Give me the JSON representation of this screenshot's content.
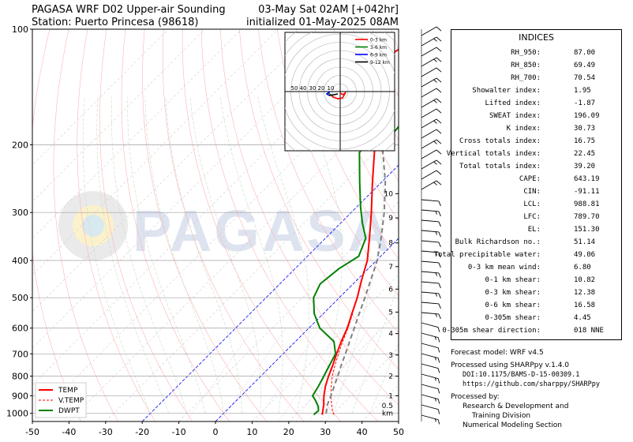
{
  "header": {
    "title_line1": "PAGASA WRF D02 Upper-air Sounding",
    "title_line2": "Station: Puerto Princesa (98618)",
    "valid_line1": "03-May Sat 02AM [+042hr]",
    "valid_line2": "initialized 01-May-2025 08AM"
  },
  "watermark": "PAGASA",
  "chart_data": {
    "type": "line",
    "subtype": "skew-T log-P diagram",
    "x_range": [
      -50,
      50
    ],
    "x_ticks": [
      -50,
      -40,
      -30,
      -20,
      -10,
      0,
      10,
      20,
      30,
      40,
      50
    ],
    "y_scale": "log",
    "y_range": [
      1050,
      100
    ],
    "y_ticks": [
      100,
      200,
      300,
      400,
      500,
      600,
      700,
      800,
      900,
      1000
    ],
    "km_ticks": [
      {
        "label": "1",
        "p": 900
      },
      {
        "label": "2",
        "p": 800
      },
      {
        "label": "3",
        "p": 705
      },
      {
        "label": "4",
        "p": 620
      },
      {
        "label": "5",
        "p": 545
      },
      {
        "label": "6",
        "p": 475
      },
      {
        "label": "7",
        "p": 415
      },
      {
        "label": "8",
        "p": 360
      },
      {
        "label": "9",
        "p": 310
      },
      {
        "label": "10",
        "p": 268
      }
    ],
    "km_extra": [
      {
        "label": "0.5",
        "p": 955
      },
      {
        "label": "km",
        "p": 1000
      }
    ],
    "legend_position": "bottom-left",
    "series": [
      {
        "name": "TEMP",
        "color": "#ff0000",
        "style": "solid",
        "points": [
          [
            1008,
            27.2
          ],
          [
            1000,
            27
          ],
          [
            975,
            26
          ],
          [
            950,
            25
          ],
          [
            925,
            23.8
          ],
          [
            900,
            22.6
          ],
          [
            850,
            20.4
          ],
          [
            800,
            18.5
          ],
          [
            750,
            16.7
          ],
          [
            700,
            14.6
          ],
          [
            650,
            12.5
          ],
          [
            600,
            10.5
          ],
          [
            550,
            7.8
          ],
          [
            500,
            4.9
          ],
          [
            450,
            1.3
          ],
          [
            400,
            -2.5
          ],
          [
            350,
            -8
          ],
          [
            300,
            -14.5
          ],
          [
            250,
            -22.5
          ],
          [
            200,
            -32
          ],
          [
            150,
            -45
          ],
          [
            125,
            -52
          ],
          [
            115,
            -52
          ],
          [
            100,
            -49
          ]
        ]
      },
      {
        "name": "V.TEMP",
        "color": "#ff0000",
        "style": "dashed",
        "points": [
          [
            1008,
            30.5
          ],
          [
            1000,
            30
          ],
          [
            975,
            28.5
          ],
          [
            950,
            27.2
          ],
          [
            925,
            25.8
          ],
          [
            900,
            24.5
          ],
          [
            850,
            22
          ],
          [
            800,
            19.5
          ],
          [
            750,
            17.3
          ],
          [
            700,
            15.1
          ],
          [
            650,
            12.9
          ],
          [
            600,
            10.7
          ],
          [
            550,
            8
          ]
        ]
      },
      {
        "name": "DWPT",
        "color": "#008000",
        "style": "solid",
        "points": [
          [
            1008,
            25
          ],
          [
            1000,
            25
          ],
          [
            985,
            25.2
          ],
          [
            960,
            24
          ],
          [
            925,
            21.5
          ],
          [
            900,
            19.5
          ],
          [
            850,
            18.5
          ],
          [
            800,
            17.2
          ],
          [
            750,
            15.8
          ],
          [
            700,
            14.3
          ],
          [
            650,
            10.5
          ],
          [
            600,
            3
          ],
          [
            550,
            -2.5
          ],
          [
            500,
            -7
          ],
          [
            460,
            -9
          ],
          [
            420,
            -8
          ],
          [
            390,
            -6
          ],
          [
            350,
            -9
          ],
          [
            320,
            -14
          ],
          [
            290,
            -19
          ],
          [
            250,
            -26
          ],
          [
            210,
            -34
          ],
          [
            200,
            -35
          ],
          [
            190,
            -30
          ],
          [
            170,
            -31
          ],
          [
            150,
            -36
          ],
          [
            130,
            -41
          ],
          [
            115,
            -41
          ],
          [
            100,
            -38
          ]
        ]
      },
      {
        "name": "parcel",
        "color": "#808080",
        "style": "dashed",
        "points": [
          [
            1000,
            28
          ],
          [
            950,
            26
          ],
          [
            900,
            24.5
          ],
          [
            850,
            22.8
          ],
          [
            800,
            21
          ],
          [
            750,
            19
          ],
          [
            700,
            17
          ],
          [
            650,
            14.8
          ],
          [
            600,
            12.4
          ],
          [
            550,
            9.8
          ],
          [
            500,
            7
          ],
          [
            450,
            3.8
          ],
          [
            400,
            0.2
          ],
          [
            350,
            -4.8
          ],
          [
            300,
            -11
          ],
          [
            250,
            -19
          ],
          [
            200,
            -30
          ],
          [
            150,
            -45
          ],
          [
            130,
            -55
          ],
          [
            120,
            -60
          ]
        ]
      }
    ]
  },
  "hodograph": {
    "rings": [
      "10",
      "20",
      "30",
      "40",
      "50"
    ],
    "legend": [
      {
        "label": "0-3 km",
        "color": "#ff0000"
      },
      {
        "label": "3-6 km",
        "color": "#008000"
      },
      {
        "label": "6-9 km",
        "color": "#0000ff"
      },
      {
        "label": "9-12 km",
        "color": "#000000"
      }
    ]
  },
  "indices": {
    "title": "INDICES",
    "rows": [
      {
        "label": "RH_950:",
        "value": "87.00"
      },
      {
        "label": "RH_850:",
        "value": "69.49"
      },
      {
        "label": "RH_700:",
        "value": "70.54"
      },
      {
        "label": "Showalter index:",
        "value": "1.95"
      },
      {
        "label": "Lifted index:",
        "value": "-1.87"
      },
      {
        "label": "SWEAT index:",
        "value": "196.09"
      },
      {
        "label": "K index:",
        "value": "30.73"
      },
      {
        "label": "Cross totals index:",
        "value": "16.75"
      },
      {
        "label": "Vertical totals index:",
        "value": "22.45"
      },
      {
        "label": "Total totals index:",
        "value": "39.20"
      },
      {
        "label": "CAPE:",
        "value": "643.19"
      },
      {
        "label": "CIN:",
        "value": "-91.11"
      },
      {
        "label": "LCL:",
        "value": "988.81"
      },
      {
        "label": "LFC:",
        "value": "789.70"
      },
      {
        "label": "EL:",
        "value": "151.30"
      },
      {
        "label": "Bulk Richardson no.:",
        "value": "51.14"
      },
      {
        "label": "Total precipitable water:",
        "value": "49.06"
      },
      {
        "label": "0-3 km mean wind:",
        "value": "6.80"
      },
      {
        "label": "0-1 km shear:",
        "value": "10.82"
      },
      {
        "label": "0-3 km shear:",
        "value": "12.38"
      },
      {
        "label": "0-6 km shear:",
        "value": "16.58"
      },
      {
        "label": "0-305m shear:",
        "value": "4.45"
      },
      {
        "label": "0-305m shear direction:",
        "value": "018 NNE"
      }
    ]
  },
  "footer": {
    "forecast_model": "Forecast model: WRF v4.5",
    "processed_using": "Processed using SHARPpy v.1.4.0",
    "doi": "DOI:10.1175/BAMS-D-15-00309.1",
    "url": "https://github.com/sharppy/SHARPpy",
    "processed_by": "Processed by:",
    "org_line1": "Research & Development and",
    "org_line2": "Training Division",
    "org_line3": "Numerical Modeling Section"
  }
}
